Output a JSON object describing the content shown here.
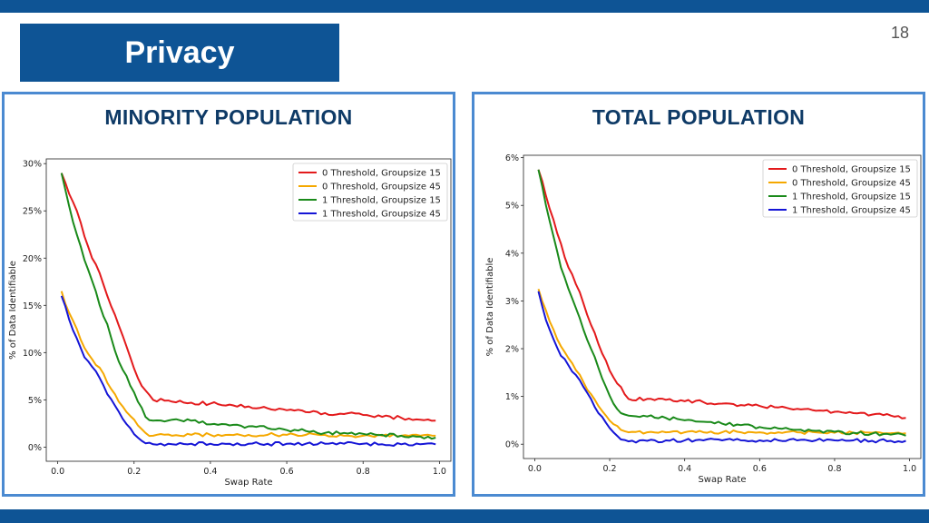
{
  "slide": {
    "title": "Privacy",
    "page_number": "18",
    "colors": {
      "brand": "#0e5495",
      "panel_border": "#4b8ad1",
      "heading": "#0e3a66"
    }
  },
  "chart_data": [
    {
      "type": "line",
      "title": "MINORITY POPULATION",
      "xlabel": "Swap Rate",
      "ylabel": "% of Data Identifiable",
      "xlim": [
        -0.03,
        1.03
      ],
      "ylim": [
        -1.5,
        30.5
      ],
      "xticks": [
        0.0,
        0.2,
        0.4,
        0.6,
        0.8,
        1.0
      ],
      "xtick_labels": [
        "0.0",
        "0.2",
        "0.4",
        "0.6",
        "0.8",
        "1.0"
      ],
      "yticks": [
        0,
        5,
        10,
        15,
        20,
        25,
        30
      ],
      "ytick_labels": [
        "0%",
        "5%",
        "10%",
        "15%",
        "20%",
        "25%",
        "30%"
      ],
      "legend_position": "top-right",
      "x": [
        0.01,
        0.03,
        0.05,
        0.07,
        0.09,
        0.11,
        0.13,
        0.15,
        0.17,
        0.19,
        0.21,
        0.23,
        0.25,
        0.3,
        0.35,
        0.4,
        0.45,
        0.5,
        0.55,
        0.6,
        0.65,
        0.7,
        0.75,
        0.8,
        0.85,
        0.9,
        0.95,
        0.99
      ],
      "series": [
        {
          "name": "0 Threshold, Groupsize 15",
          "color": "#e31a1c",
          "values": [
            29.0,
            26.8,
            25.0,
            22.3,
            20.0,
            18.4,
            16.0,
            14.0,
            11.8,
            9.5,
            7.3,
            6.0,
            5.0,
            4.8,
            4.7,
            4.6,
            4.5,
            4.3,
            4.1,
            3.9,
            3.7,
            3.6,
            3.5,
            3.4,
            3.2,
            3.1,
            2.9,
            2.8
          ]
        },
        {
          "name": "0 Threshold, Groupsize 45",
          "color": "#f5a800",
          "values": [
            16.5,
            14.2,
            12.5,
            10.5,
            9.3,
            8.4,
            6.8,
            5.6,
            4.3,
            3.3,
            2.3,
            1.5,
            1.2,
            1.2,
            1.3,
            1.3,
            1.3,
            1.3,
            1.3,
            1.3,
            1.3,
            1.3,
            1.2,
            1.2,
            1.2,
            1.2,
            1.2,
            1.2
          ]
        },
        {
          "name": "1 Threshold, Groupsize 15",
          "color": "#1a8a1a",
          "values": [
            29.0,
            25.5,
            22.5,
            19.8,
            17.6,
            15.0,
            13.0,
            10.2,
            8.2,
            6.5,
            4.8,
            3.2,
            2.8,
            2.9,
            2.8,
            2.4,
            2.3,
            2.2,
            2.0,
            1.8,
            1.7,
            1.5,
            1.5,
            1.4,
            1.3,
            1.2,
            1.1,
            1.0
          ]
        },
        {
          "name": "1 Threshold, Groupsize 45",
          "color": "#1515d6",
          "values": [
            16.0,
            13.5,
            11.5,
            9.5,
            8.5,
            7.3,
            5.6,
            4.4,
            3.0,
            2.0,
            1.0,
            0.4,
            0.3,
            0.3,
            0.35,
            0.35,
            0.35,
            0.35,
            0.35,
            0.35,
            0.35,
            0.35,
            0.35,
            0.35,
            0.3,
            0.3,
            0.3,
            0.3
          ]
        }
      ]
    },
    {
      "type": "line",
      "title": "TOTAL POPULATION",
      "xlabel": "Swap Rate",
      "ylabel": "% of Data Identifiable",
      "xlim": [
        -0.03,
        1.03
      ],
      "ylim": [
        -0.3,
        6.05
      ],
      "xticks": [
        0.0,
        0.2,
        0.4,
        0.6,
        0.8,
        1.0
      ],
      "xtick_labels": [
        "0.0",
        "0.2",
        "0.4",
        "0.6",
        "0.8",
        "1.0"
      ],
      "yticks": [
        0,
        1,
        2,
        3,
        4,
        5,
        6
      ],
      "ytick_labels": [
        "0%",
        "1%",
        "2%",
        "3%",
        "4%",
        "5%",
        "6%"
      ],
      "legend_position": "top-right",
      "x": [
        0.01,
        0.03,
        0.05,
        0.07,
        0.09,
        0.11,
        0.13,
        0.15,
        0.17,
        0.19,
        0.21,
        0.23,
        0.25,
        0.3,
        0.35,
        0.4,
        0.45,
        0.5,
        0.55,
        0.6,
        0.65,
        0.7,
        0.75,
        0.8,
        0.85,
        0.9,
        0.95,
        0.99
      ],
      "series": [
        {
          "name": "0 Threshold, Groupsize 15",
          "color": "#e31a1c",
          "values": [
            5.75,
            5.2,
            4.7,
            4.2,
            3.7,
            3.35,
            2.95,
            2.5,
            2.1,
            1.75,
            1.4,
            1.2,
            0.95,
            0.95,
            0.93,
            0.9,
            0.88,
            0.85,
            0.82,
            0.8,
            0.77,
            0.74,
            0.7,
            0.68,
            0.65,
            0.62,
            0.6,
            0.55
          ]
        },
        {
          "name": "0 Threshold, Groupsize 45",
          "color": "#f5a800",
          "values": [
            3.25,
            2.8,
            2.4,
            2.05,
            1.8,
            1.55,
            1.3,
            1.05,
            0.8,
            0.6,
            0.42,
            0.3,
            0.25,
            0.25,
            0.25,
            0.25,
            0.25,
            0.25,
            0.25,
            0.25,
            0.25,
            0.25,
            0.25,
            0.24,
            0.24,
            0.24,
            0.23,
            0.23
          ]
        },
        {
          "name": "1 Threshold, Groupsize 15",
          "color": "#1a8a1a",
          "values": [
            5.75,
            5.0,
            4.35,
            3.7,
            3.25,
            2.85,
            2.4,
            2.0,
            1.6,
            1.2,
            0.85,
            0.65,
            0.6,
            0.58,
            0.55,
            0.5,
            0.47,
            0.43,
            0.4,
            0.36,
            0.33,
            0.3,
            0.28,
            0.26,
            0.24,
            0.22,
            0.2,
            0.18
          ]
        },
        {
          "name": "1 Threshold, Groupsize 45",
          "color": "#1515d6",
          "values": [
            3.2,
            2.6,
            2.2,
            1.85,
            1.65,
            1.45,
            1.2,
            0.95,
            0.65,
            0.45,
            0.25,
            0.1,
            0.06,
            0.07,
            0.08,
            0.08,
            0.08,
            0.08,
            0.08,
            0.08,
            0.08,
            0.08,
            0.08,
            0.08,
            0.08,
            0.07,
            0.07,
            0.07
          ]
        }
      ]
    }
  ]
}
